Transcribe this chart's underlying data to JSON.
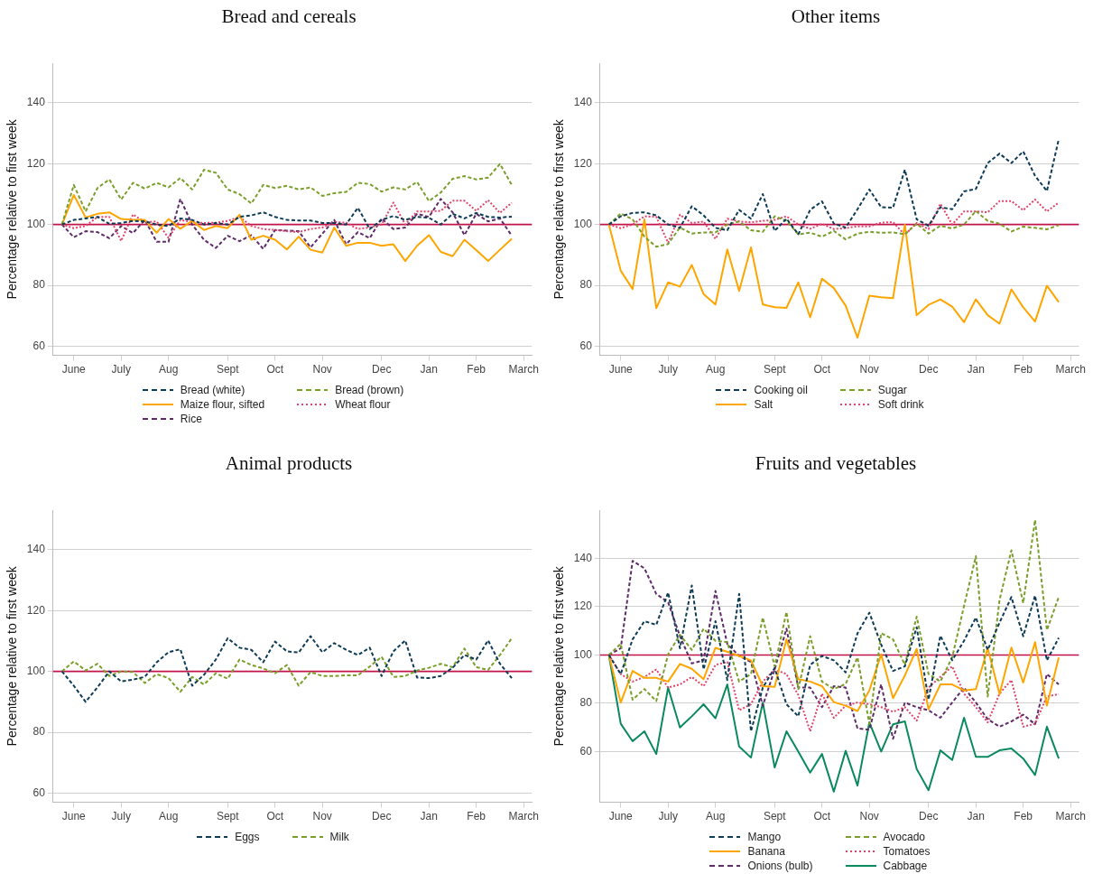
{
  "chart_data": [
    {
      "type": "line",
      "title": "Bread and cereals",
      "ylabel": "Percentage relative to first week",
      "legend": "bottom",
      "grid": "y",
      "marker": "none",
      "categories": [
        null,
        "June",
        null,
        null,
        null,
        "July",
        null,
        null,
        null,
        "Aug",
        null,
        null,
        null,
        null,
        "Sept",
        null,
        null,
        null,
        "Oct",
        null,
        null,
        null,
        "Nov",
        null,
        null,
        null,
        null,
        "Dec",
        null,
        null,
        null,
        "Jan",
        null,
        null,
        null,
        "Feb",
        null,
        null,
        null,
        "March"
      ],
      "ylim": [
        57,
        153
      ],
      "yticks": [
        60,
        80,
        100,
        120,
        140
      ],
      "ref_lines": [
        {
          "axis": "y",
          "value": 100,
          "color": "#c2134a"
        }
      ],
      "series": [
        {
          "name": "Bread (white)",
          "color": "#0e3c56",
          "line_style": "dashed",
          "values": [
            100,
            101.5,
            102,
            102.5,
            100.2,
            100.5,
            101.2,
            101,
            100,
            99.5,
            102,
            101.5,
            100,
            100.5,
            100,
            102.5,
            103,
            104,
            102.5,
            101.5,
            101.3,
            101.3,
            100.5,
            100.5,
            100,
            105.5,
            98.5,
            101.5,
            102.8,
            101.5,
            102.5,
            102.2,
            100,
            103.5,
            102,
            103.8,
            102.5,
            102.3,
            102.6,
            null
          ]
        },
        {
          "name": "Bread (brown)",
          "color": "#7b9e2a",
          "line_style": "dashed",
          "values": [
            100,
            113,
            104.3,
            112,
            114.8,
            108.2,
            113.7,
            111.8,
            113.7,
            112.2,
            115.3,
            111.5,
            118,
            117,
            111.5,
            110,
            106.9,
            113,
            112,
            112.7,
            111.5,
            112.2,
            109.4,
            110.3,
            110.7,
            113.7,
            113.3,
            110.8,
            112.2,
            111.5,
            114,
            107.7,
            110.5,
            115,
            115.9,
            114.8,
            115.4,
            119.9,
            113,
            null
          ]
        },
        {
          "name": "Maize flour, sifted",
          "color": "#ffa500",
          "line_style": "solid",
          "values": [
            100,
            109.7,
            102.3,
            103.5,
            104,
            101.8,
            101.5,
            101.5,
            97.3,
            101.8,
            98.6,
            101.2,
            98.2,
            99.5,
            98.8,
            103.2,
            95,
            96.3,
            95,
            91.8,
            96,
            91.7,
            90.8,
            99,
            93,
            94,
            94,
            93,
            93.5,
            88,
            93,
            96.5,
            91,
            89.6,
            95,
            91.6,
            88,
            91.7,
            95.3,
            null
          ]
        },
        {
          "name": "Wheat flour",
          "color": "#e0436a",
          "line_style": "dotted",
          "values": [
            100,
            98.8,
            99.5,
            102.5,
            102.5,
            94.6,
            103.3,
            100.8,
            101,
            95.6,
            101.5,
            100.8,
            100.5,
            100.6,
            101.2,
            102.5,
            99.5,
            98.5,
            98.2,
            97.8,
            97.5,
            98.5,
            99,
            100.8,
            100.6,
            98.5,
            99,
            100,
            107.2,
            100,
            104.3,
            104.3,
            104.5,
            107.8,
            107.8,
            104.5,
            108,
            103.8,
            107.2,
            null
          ]
        },
        {
          "name": "Rice",
          "color": "#5f2c69",
          "line_style": "dashed",
          "values": [
            100,
            95.8,
            97.8,
            97.5,
            95.5,
            99.5,
            97.2,
            101.5,
            94.3,
            94.3,
            108.4,
            100,
            95,
            92.3,
            96.3,
            94.5,
            96.5,
            92,
            98.2,
            98,
            97.8,
            92.5,
            97,
            101.5,
            93.5,
            97.5,
            95.5,
            102,
            98.5,
            99,
            103.5,
            102.5,
            108.4,
            104,
            96.5,
            103.5,
            101,
            102,
            96.3,
            null
          ]
        }
      ]
    },
    {
      "type": "line",
      "title": "Other items",
      "ylabel": "Percentage relative to first week",
      "legend": "bottom",
      "grid": "y",
      "marker": "none",
      "categories": [
        null,
        "June",
        null,
        null,
        null,
        "July",
        null,
        null,
        null,
        "Aug",
        null,
        null,
        null,
        null,
        "Sept",
        null,
        null,
        null,
        "Oct",
        null,
        null,
        null,
        "Nov",
        null,
        null,
        null,
        null,
        "Dec",
        null,
        null,
        null,
        "Jan",
        null,
        null,
        null,
        "Feb",
        null,
        null,
        null,
        "March"
      ],
      "ylim": [
        57,
        153
      ],
      "yticks": [
        60,
        80,
        100,
        120,
        140
      ],
      "ref_lines": [
        {
          "axis": "y",
          "value": 100,
          "color": "#c2134a"
        }
      ],
      "series": [
        {
          "name": "Cooking oil",
          "color": "#0e3c56",
          "line_style": "dashed",
          "values": [
            100,
            102.7,
            103.8,
            104,
            103,
            100,
            98.9,
            106,
            103,
            98.9,
            98.1,
            104.8,
            101.9,
            110,
            97.9,
            101.9,
            96.8,
            104.8,
            107.6,
            100.3,
            99,
            105,
            111.5,
            105.7,
            105.5,
            118,
            101.7,
            99.6,
            105.7,
            105,
            110.9,
            111.7,
            120.2,
            123.3,
            120.2,
            124,
            116,
            111,
            128,
            null
          ]
        },
        {
          "name": "Sugar",
          "color": "#7b9e2a",
          "line_style": "dashed",
          "values": [
            100,
            103.6,
            101.7,
            96,
            92.7,
            93.6,
            99,
            97,
            97.4,
            97.4,
            100,
            101,
            98.1,
            97.6,
            102.7,
            101.2,
            96.8,
            97.3,
            96,
            97.9,
            95.1,
            97,
            97.6,
            97.3,
            97.4,
            96.8,
            100.3,
            97,
            99.6,
            98.7,
            100,
            104.4,
            101.2,
            100.3,
            97.7,
            99.3,
            98.9,
            98.4,
            99.8,
            null
          ]
        },
        {
          "name": "Salt",
          "color": "#ffa500",
          "line_style": "solid",
          "values": [
            100,
            84.8,
            78.8,
            101.7,
            72.5,
            81,
            79.6,
            86.7,
            77.1,
            73.7,
            91.8,
            78.2,
            92.5,
            73.7,
            72.8,
            72.6,
            81,
            69.5,
            82.2,
            79.1,
            73.3,
            62.8,
            76.6,
            76.1,
            75.8,
            100,
            70.2,
            73.6,
            75.4,
            73,
            67.9,
            75.4,
            70.2,
            67.4,
            78.7,
            72.8,
            68.1,
            79.9,
            74.5,
            null
          ]
        },
        {
          "name": "Soft drink",
          "color": "#e0436a",
          "line_style": "dotted",
          "values": [
            100,
            98.8,
            100,
            102.7,
            102.5,
            94,
            103.2,
            100.5,
            101,
            95.3,
            101.9,
            101,
            100.7,
            101.2,
            101.5,
            102.7,
            100,
            98.6,
            100.2,
            98.5,
            98.8,
            99.4,
            99.4,
            100.6,
            100.8,
            96.6,
            100.5,
            98.5,
            106.8,
            100,
            104.3,
            104.3,
            104,
            107.7,
            107.7,
            104.7,
            108.2,
            104.3,
            107.2,
            null
          ]
        }
      ]
    },
    {
      "type": "line",
      "title": "Animal products",
      "ylabel": "Percentage relative to first week",
      "legend": "bottom",
      "grid": "y",
      "marker": "none",
      "categories": [
        null,
        "June",
        null,
        null,
        null,
        "July",
        null,
        null,
        null,
        "Aug",
        null,
        null,
        null,
        null,
        "Sept",
        null,
        null,
        null,
        "Oct",
        null,
        null,
        null,
        "Nov",
        null,
        null,
        null,
        null,
        "Dec",
        null,
        null,
        null,
        "Jan",
        null,
        null,
        null,
        "Feb",
        null,
        null,
        null,
        "March"
      ],
      "ylim": [
        57,
        153
      ],
      "yticks": [
        60,
        80,
        100,
        120,
        140
      ],
      "ref_lines": [
        {
          "axis": "y",
          "value": 100,
          "color": "#c2134a"
        }
      ],
      "series": [
        {
          "name": "Eggs",
          "color": "#0e3c56",
          "line_style": "dashed",
          "values": [
            100,
            95.3,
            90,
            94.8,
            100,
            96.7,
            97.3,
            98.2,
            103,
            106.3,
            107.3,
            95.3,
            98.9,
            103.9,
            110.9,
            107.8,
            107.1,
            103,
            109.8,
            106.6,
            106.2,
            111.6,
            106.3,
            109.3,
            107.1,
            105.4,
            107.8,
            98.5,
            106.6,
            110.2,
            98,
            97.8,
            98.5,
            101.2,
            105.4,
            103.9,
            110.2,
            102.5,
            97.8,
            null
          ]
        },
        {
          "name": "Milk",
          "color": "#7b9e2a",
          "line_style": "dashed",
          "values": [
            100,
            103.3,
            100.3,
            102.5,
            98.5,
            100,
            99.8,
            96.2,
            99.1,
            97.8,
            93.3,
            98.2,
            95.7,
            99.4,
            97.6,
            103.9,
            102.1,
            101,
            99.4,
            102.1,
            95.3,
            99.8,
            98.5,
            98.5,
            98.7,
            98.7,
            101.6,
            104.8,
            98.2,
            98.5,
            100.3,
            101.2,
            102.5,
            101.4,
            107.5,
            101.4,
            100.5,
            105.4,
            110.9,
            null
          ]
        }
      ]
    },
    {
      "type": "line",
      "title": "Fruits and vegetables",
      "ylabel": "Percentage relative to first week",
      "legend": "bottom",
      "grid": "y",
      "marker": "none",
      "categories": [
        null,
        "June",
        null,
        null,
        null,
        "July",
        null,
        null,
        null,
        "Aug",
        null,
        null,
        null,
        null,
        "Sept",
        null,
        null,
        null,
        "Oct",
        null,
        null,
        null,
        "Nov",
        null,
        null,
        null,
        null,
        "Dec",
        null,
        null,
        null,
        "Jan",
        null,
        null,
        null,
        "Feb",
        null,
        null,
        null,
        "March"
      ],
      "ylim": [
        39,
        160
      ],
      "yticks": [
        60,
        80,
        100,
        120,
        140
      ],
      "ref_lines": [
        {
          "axis": "y",
          "value": 100,
          "color": "#c2134a"
        }
      ],
      "series": [
        {
          "name": "Mango",
          "color": "#0e3c56",
          "line_style": "dashed",
          "values": [
            100,
            92.1,
            106.5,
            114,
            112.5,
            125.9,
            102.8,
            128.8,
            94,
            114,
            89.6,
            125.3,
            68.4,
            86.5,
            94.6,
            79.6,
            74.6,
            95.9,
            99.6,
            97.8,
            92.8,
            109,
            117.5,
            104.3,
            93.4,
            95.3,
            111.5,
            81.5,
            108,
            97.8,
            105.9,
            115.5,
            102.1,
            113.4,
            124,
            107.8,
            124.6,
            97.8,
            107.1,
            null
          ]
        },
        {
          "name": "Avocado",
          "color": "#7b9e2a",
          "line_style": "dashed",
          "values": [
            100,
            104.6,
            81.5,
            85.9,
            80.9,
            100.3,
            108.4,
            102.1,
            110.9,
            105.9,
            105.3,
            89,
            92.1,
            115.5,
            95.3,
            117.8,
            85.9,
            107.8,
            89,
            85.9,
            88,
            99,
            71.5,
            109,
            106.5,
            95.9,
            115.9,
            92.1,
            89,
            99,
            120.3,
            140.9,
            82.8,
            122.8,
            143.4,
            121.5,
            155.9,
            110.3,
            124,
            null
          ]
        },
        {
          "name": "Banana",
          "color": "#ffa500",
          "line_style": "solid",
          "values": [
            100,
            80.3,
            93.4,
            90.5,
            90.5,
            89,
            96.3,
            94.3,
            90,
            103,
            101.3,
            99.6,
            97.8,
            87.1,
            86.8,
            106.5,
            90,
            89,
            87.1,
            80.5,
            79,
            76.8,
            85.3,
            100.3,
            82.1,
            91.5,
            102.5,
            77.5,
            87.8,
            87.8,
            85.3,
            85.9,
            102.8,
            83.8,
            103.1,
            88.6,
            105.3,
            79,
            99,
            null
          ]
        },
        {
          "name": "Tomatoes",
          "color": "#e0436a",
          "line_style": "dotted",
          "values": [
            100,
            92.1,
            89,
            90.9,
            94,
            86.5,
            87.8,
            90.9,
            87.1,
            95.9,
            97.1,
            77.1,
            79.6,
            89,
            94,
            92.1,
            83.4,
            68.4,
            84,
            74,
            79,
            80.3,
            79.6,
            78.4,
            76.5,
            78.4,
            72.8,
            86.5,
            90.9,
            95.3,
            84,
            78.4,
            72.1,
            84,
            89.6,
            70.3,
            71.5,
            82.8,
            83.8,
            null
          ]
        },
        {
          "name": "Onions (bulb)",
          "color": "#5f2c69",
          "line_style": "dashed",
          "values": [
            100,
            102.8,
            139,
            135.9,
            125.3,
            121.8,
            107.8,
            96.5,
            97.8,
            126.5,
            104.6,
            99.6,
            97.1,
            79,
            94,
            110.9,
            86.5,
            86.5,
            78.4,
            87.1,
            86.5,
            69.6,
            69,
            87.8,
            65.3,
            80.3,
            78.4,
            77.1,
            74,
            80.3,
            86.5,
            80.3,
            73.4,
            70.3,
            72.5,
            75.3,
            71.3,
            92.1,
            87.8,
            null
          ]
        },
        {
          "name": "Cabbage",
          "color": "#0a8a5c",
          "line_style": "solid",
          "values": [
            100,
            71.5,
            64.3,
            68.4,
            59,
            86.5,
            70,
            74.6,
            79.6,
            73.8,
            87.8,
            62.1,
            57.5,
            80.3,
            53.4,
            68.4,
            60,
            51.3,
            59,
            43.4,
            60.3,
            45.9,
            72.1,
            60,
            71.3,
            72.5,
            52.8,
            44,
            60.5,
            56.5,
            74,
            57.8,
            57.8,
            60.5,
            61.3,
            57.1,
            50.3,
            70.3,
            57.1,
            null
          ]
        }
      ]
    }
  ]
}
